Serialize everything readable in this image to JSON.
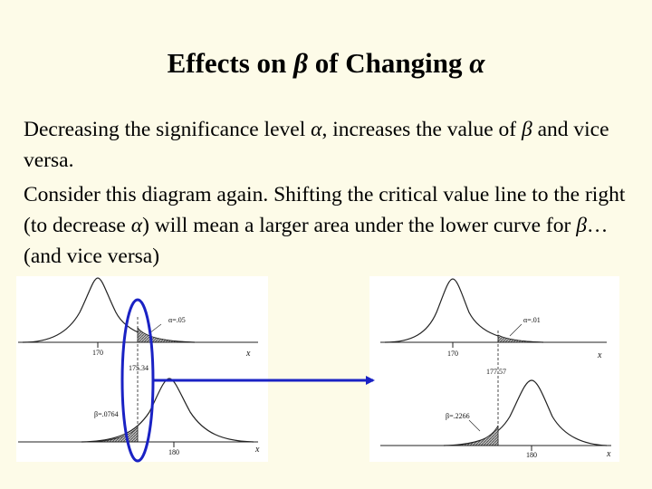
{
  "title": {
    "prefix": "Effects on ",
    "beta": "β",
    "middle": " of Changing ",
    "alpha": "α"
  },
  "paragraph1": {
    "a": "Decreasing the significance level ",
    "alpha": "α",
    "b": ", increases the value of ",
    "beta": "β",
    "c": " and vice versa."
  },
  "paragraph2": {
    "a": "Consider this diagram again. Shifting the critical value line to the right (to decrease ",
    "alpha": "α",
    "b": ") will mean a larger area under the lower curve for ",
    "beta": "β",
    "c": "… (and vice versa)"
  },
  "left_diagram": {
    "alpha_label": "α=.05",
    "mean_upper": "170",
    "critical_value": "175.34",
    "beta_label": "β=.0764",
    "mean_lower": "180",
    "axis_label": "x"
  },
  "right_diagram": {
    "alpha_label": "α=.01",
    "mean_upper": "170",
    "critical_value": "177.57",
    "beta_label": "β=.2266",
    "mean_lower": "180",
    "axis_label": "x"
  },
  "colors": {
    "background": "#fdfbe8",
    "highlight": "#1a22c4",
    "shading": "#777777"
  }
}
